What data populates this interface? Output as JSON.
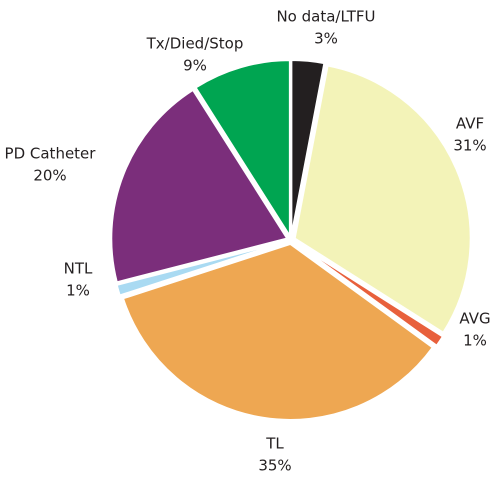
{
  "chart_data": {
    "type": "pie",
    "categories": [
      "No data/LTFU",
      "AVF",
      "AVG",
      "TL",
      "NTL",
      "PD Catheter",
      "Tx/Died/Stop"
    ],
    "values": [
      3,
      31,
      1,
      35,
      1,
      20,
      9
    ],
    "value_labels": [
      "3%",
      "31%",
      "1%",
      "35%",
      "1%",
      "20%",
      "9%"
    ],
    "colors": [
      "#231f20",
      "#f3f3b8",
      "#e8603c",
      "#eea752",
      "#a9daf2",
      "#7b2e7b",
      "#00a551"
    ]
  }
}
